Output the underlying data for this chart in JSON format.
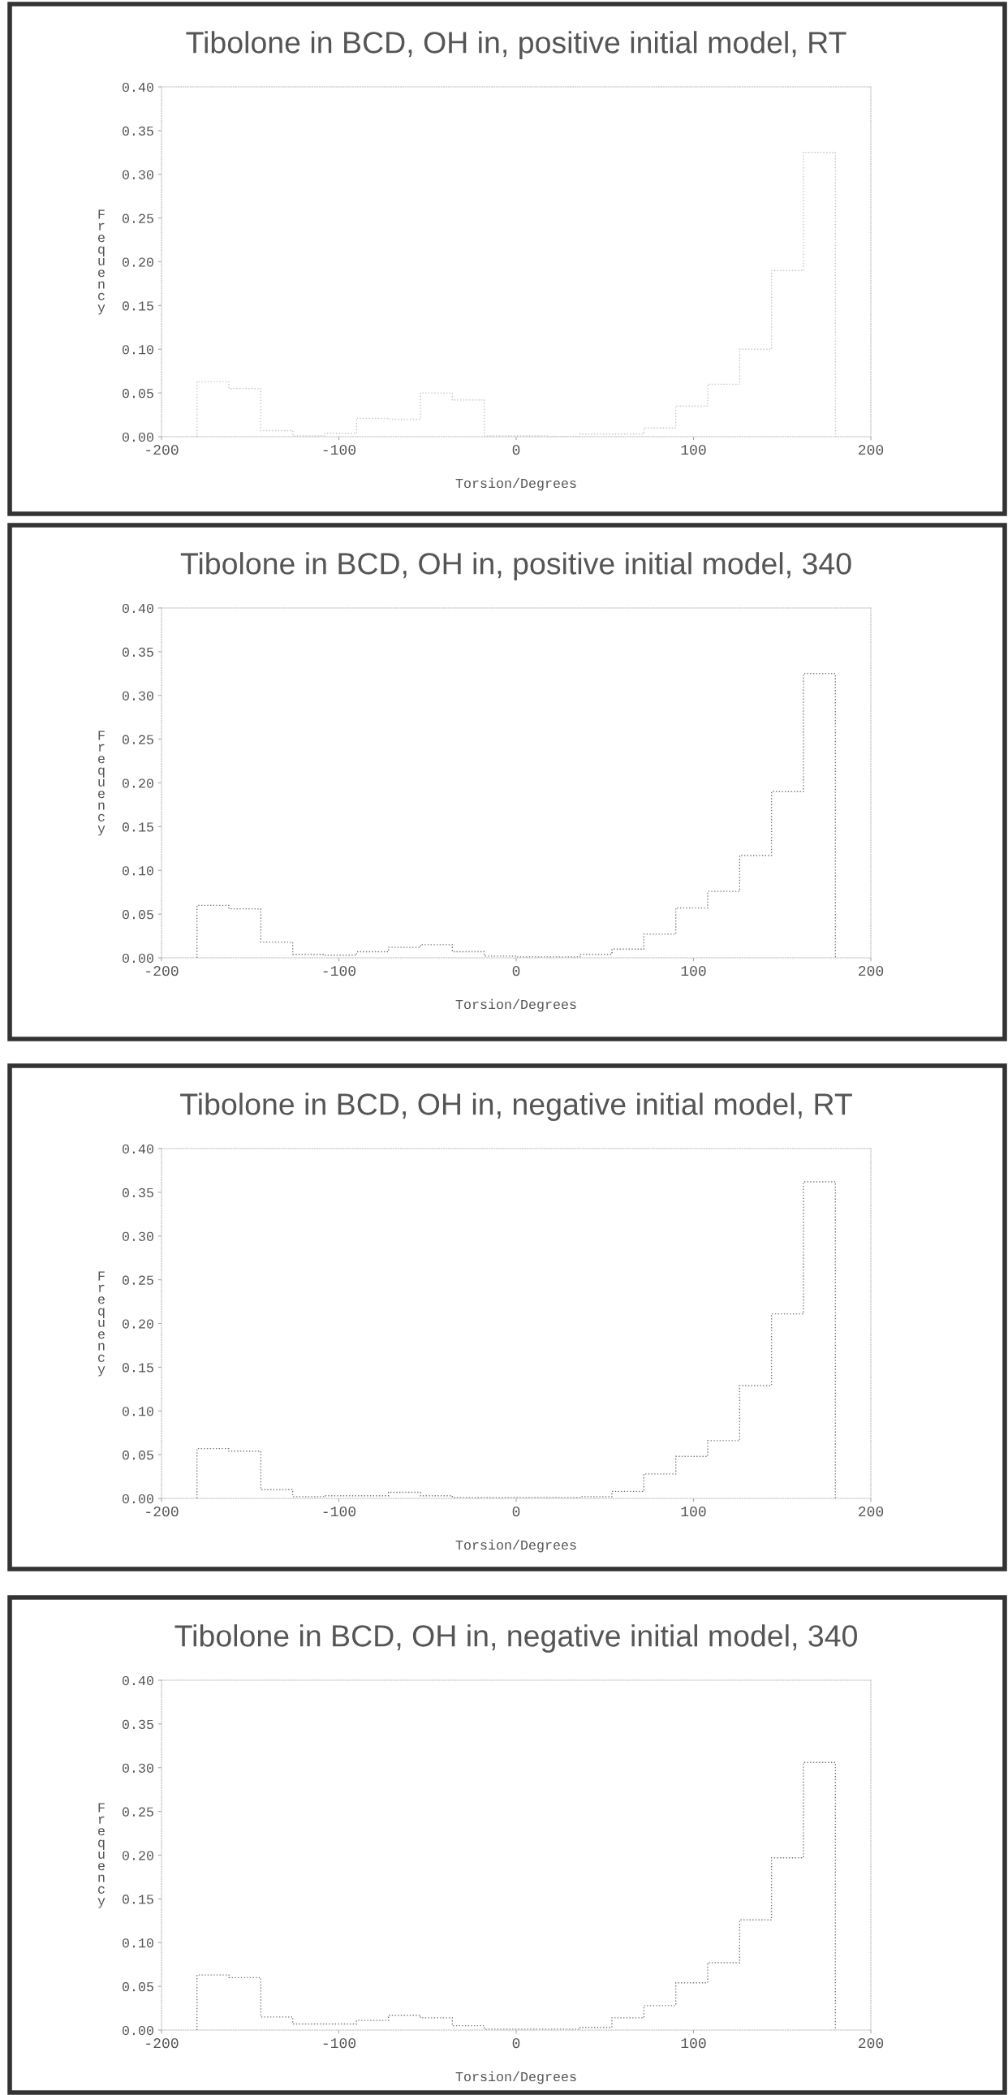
{
  "chart_data": [
    {
      "type": "histogram",
      "title": "Tibolone in BCD, OH in, positive initial model, RT",
      "xlabel": "Torsion/Degrees",
      "ylabel": "Frequency",
      "color": "#c4c4c4",
      "bins": [
        -180,
        -162,
        -144,
        -126,
        -108,
        -90,
        -72,
        -54,
        -36,
        -18,
        0,
        18,
        36,
        54,
        72,
        90,
        108,
        126,
        144,
        162,
        180
      ],
      "values": [
        0.063,
        0.055,
        0.007,
        0.001,
        0.004,
        0.021,
        0.02,
        0.05,
        0.042,
        0.001,
        0.001,
        0.0,
        0.003,
        0.003,
        0.01,
        0.035,
        0.06,
        0.1,
        0.19,
        0.325
      ],
      "xlim": [
        -200,
        200
      ],
      "xticks": [
        -200,
        -100,
        0,
        100,
        200
      ],
      "ylim": [
        0,
        0.4
      ],
      "yticks": [
        {
          "value": 0,
          "label": "0.00"
        },
        {
          "value": 0.05,
          "label": "0.05"
        },
        {
          "value": 0.1,
          "label": "0.10"
        },
        {
          "value": 0.15,
          "label": "0.15"
        },
        {
          "value": 0.2,
          "label": "0.20"
        },
        {
          "value": 0.25,
          "label": "0.25"
        },
        {
          "value": 0.3,
          "label": "0.30"
        },
        {
          "value": 0.35,
          "label": "0.35"
        },
        {
          "value": 0.4,
          "label": "0.40"
        }
      ],
      "line_style": "dotted",
      "grid": false
    },
    {
      "type": "histogram",
      "title": "Tibolone in BCD, OH in, positive initial model, 340",
      "xlabel": "Torsion/Degrees",
      "ylabel": "Frequency",
      "color": "#777777",
      "bins": [
        -180,
        -162,
        -144,
        -126,
        -108,
        -90,
        -72,
        -54,
        -36,
        -18,
        0,
        18,
        36,
        54,
        72,
        90,
        108,
        126,
        144,
        162,
        180
      ],
      "values": [
        0.06,
        0.056,
        0.018,
        0.004,
        0.003,
        0.007,
        0.012,
        0.015,
        0.007,
        0.002,
        0.001,
        0.001,
        0.004,
        0.01,
        0.027,
        0.057,
        0.076,
        0.117,
        0.19,
        0.325
      ],
      "xlim": [
        -200,
        200
      ],
      "xticks": [
        -200,
        -100,
        0,
        100,
        200
      ],
      "ylim": [
        0,
        0.4
      ],
      "yticks": [
        {
          "value": 0,
          "label": "0.00"
        },
        {
          "value": 0.05,
          "label": "0.05"
        },
        {
          "value": 0.1,
          "label": "0.10"
        },
        {
          "value": 0.15,
          "label": "0.15"
        },
        {
          "value": 0.2,
          "label": "0.20"
        },
        {
          "value": 0.25,
          "label": "0.25"
        },
        {
          "value": 0.3,
          "label": "0.30"
        },
        {
          "value": 0.35,
          "label": "0.35"
        },
        {
          "value": 0.4,
          "label": "0.40"
        }
      ],
      "line_style": "dotted",
      "grid": false
    },
    {
      "type": "histogram",
      "title": "Tibolone in BCD, OH in, negative initial model, RT",
      "xlabel": "Torsion/Degrees",
      "ylabel": "Frequency",
      "color": "#777777",
      "bins": [
        -180,
        -162,
        -144,
        -126,
        -108,
        -90,
        -72,
        -54,
        -36,
        -18,
        0,
        18,
        36,
        54,
        72,
        90,
        108,
        126,
        144,
        162,
        180
      ],
      "values": [
        0.057,
        0.054,
        0.01,
        0.002,
        0.003,
        0.003,
        0.007,
        0.003,
        0.001,
        0.001,
        0.001,
        0.001,
        0.002,
        0.008,
        0.028,
        0.048,
        0.066,
        0.129,
        0.211,
        0.362
      ],
      "xlim": [
        -200,
        200
      ],
      "xticks": [
        -200,
        -100,
        0,
        100,
        200
      ],
      "ylim": [
        0,
        0.4
      ],
      "yticks": [
        {
          "value": 0,
          "label": "0.00"
        },
        {
          "value": 0.05,
          "label": "0.05"
        },
        {
          "value": 0.1,
          "label": "0.10"
        },
        {
          "value": 0.15,
          "label": "0.15"
        },
        {
          "value": 0.2,
          "label": "0.20"
        },
        {
          "value": 0.25,
          "label": "0.25"
        },
        {
          "value": 0.3,
          "label": "0.30"
        },
        {
          "value": 0.35,
          "label": "0.35"
        },
        {
          "value": 0.4,
          "label": "0.40"
        }
      ],
      "line_style": "dotted",
      "grid": false
    },
    {
      "type": "histogram",
      "title": "Tibolone in BCD, OH in, negative initial model, 340",
      "xlabel": "Torsion/Degrees",
      "ylabel": "Frequency",
      "color": "#777777",
      "bins": [
        -180,
        -162,
        -144,
        -126,
        -108,
        -90,
        -72,
        -54,
        -36,
        -18,
        0,
        18,
        36,
        54,
        72,
        90,
        108,
        126,
        144,
        162,
        180
      ],
      "values": [
        0.063,
        0.06,
        0.015,
        0.007,
        0.007,
        0.011,
        0.017,
        0.014,
        0.005,
        0.001,
        0.001,
        0.001,
        0.003,
        0.014,
        0.028,
        0.054,
        0.077,
        0.126,
        0.197,
        0.306
      ],
      "xlim": [
        -200,
        200
      ],
      "xticks": [
        -200,
        -100,
        0,
        100,
        200
      ],
      "ylim": [
        0,
        0.4
      ],
      "yticks": [
        {
          "value": 0,
          "label": "0.00"
        },
        {
          "value": 0.05,
          "label": "0.05"
        },
        {
          "value": 0.1,
          "label": "0.10"
        },
        {
          "value": 0.15,
          "label": "0.15"
        },
        {
          "value": 0.2,
          "label": "0.20"
        },
        {
          "value": 0.25,
          "label": "0.25"
        },
        {
          "value": 0.3,
          "label": "0.30"
        },
        {
          "value": 0.35,
          "label": "0.35"
        },
        {
          "value": 0.4,
          "label": "0.40"
        }
      ],
      "line_style": "dotted",
      "grid": false
    }
  ]
}
